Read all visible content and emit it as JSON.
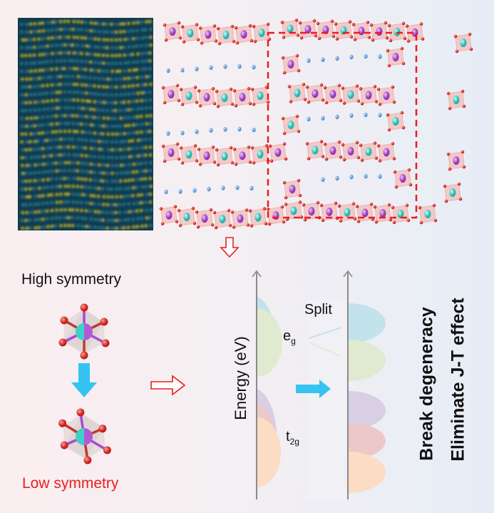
{
  "labels": {
    "high_symmetry": "High symmetry",
    "low_symmetry": "Low symmetry",
    "energy_axis": "Energy (eV)",
    "split": "Split",
    "eg_main": "e",
    "eg_sub": "g",
    "t2g_main": "t",
    "t2g_sub": "2g",
    "break_degeneracy": "Break degeneracy",
    "eliminate_jt": "Eliminate J-T effect"
  },
  "colors": {
    "accent_red": "#ee1c1c",
    "arrow_blue": "#35c3f2",
    "eg_upper": "#c3e3ec",
    "eg_lower": "#e0ead0",
    "t2g_1": "#d8cfe4",
    "t2g_2": "#ecc9c8",
    "t2g_3": "#fcdcc3",
    "octahedron_face": "#f4c6c4",
    "metal_cyan": "#46d3c9",
    "metal_purple": "#b85ad8",
    "oxygen_red": "#e23b35",
    "li_blue": "#6aa8e6"
  }
}
